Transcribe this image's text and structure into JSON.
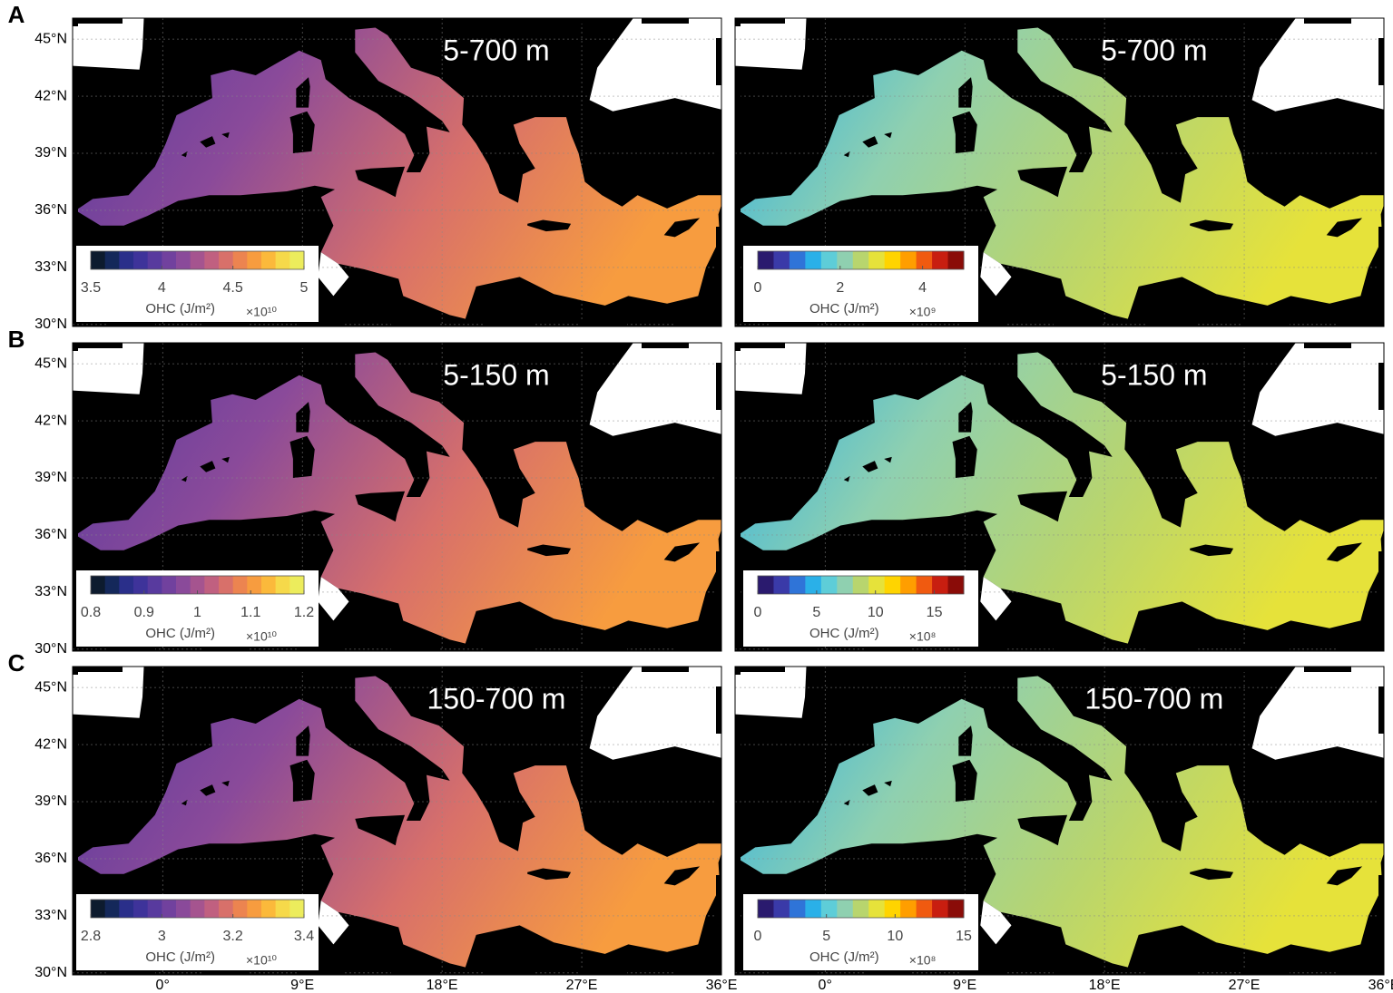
{
  "map": {
    "lon_lim": [
      -5.8,
      36
    ],
    "lat_lim": [
      29.9,
      46.1
    ],
    "lat_ticks": [
      {
        "value": 45,
        "label": "45°N"
      },
      {
        "value": 42,
        "label": "42°N"
      },
      {
        "value": 39,
        "label": "39°N"
      },
      {
        "value": 36,
        "label": "36°N"
      },
      {
        "value": 33,
        "label": "33°N"
      },
      {
        "value": 30,
        "label": "30°N"
      }
    ],
    "lon_ticks": [
      {
        "value": 0,
        "label": "0°"
      },
      {
        "value": 9,
        "label": "9°E"
      },
      {
        "value": 18,
        "label": "18°E"
      },
      {
        "value": 27,
        "label": "27°E"
      },
      {
        "value": 36,
        "label": "36°E"
      }
    ],
    "rows": [
      {
        "label": "A",
        "panels": [
          {
            "title": "5-700 m",
            "colorbar": {
              "label": "OHC (J/m²)",
              "scale": "×10¹⁰",
              "lim": [
                3.5,
                5
              ],
              "ticks": [
                3.5,
                4,
                4.5,
                5
              ],
              "colors": [
                "#0d1b2e",
                "#14285a",
                "#2a2f8a",
                "#3e339a",
                "#583a9e",
                "#71419e",
                "#8a4a9a",
                "#a5548f",
                "#c06080",
                "#d8706a",
                "#ec8450",
                "#f79c3f",
                "#fbb93b",
                "#f6d94a",
                "#ecec5c"
              ]
            }
          },
          {
            "title": "5-700 m",
            "colorbar": {
              "label": "OHC (J/m²)",
              "scale": "×10⁹",
              "lim": [
                0,
                5
              ],
              "ticks": [
                0,
                2,
                4
              ],
              "colors": [
                "#2a1a6e",
                "#3a3aa8",
                "#2f74d8",
                "#2ab0e8",
                "#5ecdd8",
                "#8fd0b0",
                "#b8d56e",
                "#e6e23a",
                "#ffd400",
                "#ff9e00",
                "#f05a10",
                "#c81e10",
                "#8a0c08"
              ]
            }
          }
        ]
      },
      {
        "label": "B",
        "panels": [
          {
            "title": "5-150 m",
            "colorbar": {
              "label": "OHC (J/m²)",
              "scale": "×10¹⁰",
              "lim": [
                0.8,
                1.2
              ],
              "ticks": [
                0.8,
                0.9,
                1,
                1.1,
                1.2
              ],
              "colors": [
                "#0d1b2e",
                "#14285a",
                "#2a2f8a",
                "#3e339a",
                "#583a9e",
                "#71419e",
                "#8a4a9a",
                "#a5548f",
                "#c06080",
                "#d8706a",
                "#ec8450",
                "#f79c3f",
                "#fbb93b",
                "#f6d94a",
                "#ecec5c"
              ]
            }
          },
          {
            "title": "5-150 m",
            "colorbar": {
              "label": "OHC (J/m²)",
              "scale": "×10⁸",
              "lim": [
                0,
                17.5
              ],
              "ticks": [
                0,
                5,
                10,
                15
              ],
              "colors": [
                "#2a1a6e",
                "#3a3aa8",
                "#2f74d8",
                "#2ab0e8",
                "#5ecdd8",
                "#8fd0b0",
                "#b8d56e",
                "#e6e23a",
                "#ffd400",
                "#ff9e00",
                "#f05a10",
                "#c81e10",
                "#8a0c08"
              ]
            }
          }
        ]
      },
      {
        "label": "C",
        "panels": [
          {
            "title": "150-700 m",
            "colorbar": {
              "label": "OHC (J/m²)",
              "scale": "×10¹⁰",
              "lim": [
                2.8,
                3.4
              ],
              "ticks": [
                2.8,
                3,
                3.2,
                3.4
              ],
              "colors": [
                "#0d1b2e",
                "#14285a",
                "#2a2f8a",
                "#3e339a",
                "#583a9e",
                "#71419e",
                "#8a4a9a",
                "#a5548f",
                "#c06080",
                "#d8706a",
                "#ec8450",
                "#f79c3f",
                "#fbb93b",
                "#f6d94a",
                "#ecec5c"
              ]
            }
          },
          {
            "title": "150-700 m",
            "colorbar": {
              "label": "OHC (J/m²)",
              "scale": "×10⁸",
              "lim": [
                0,
                15
              ],
              "ticks": [
                0,
                5,
                10,
                15
              ],
              "colors": [
                "#2a1a6e",
                "#3a3aa8",
                "#2f74d8",
                "#2ab0e8",
                "#5ecdd8",
                "#8fd0b0",
                "#b8d56e",
                "#e6e23a",
                "#ffd400",
                "#ff9e00",
                "#f05a10",
                "#c81e10",
                "#8a0c08"
              ]
            }
          }
        ]
      }
    ]
  }
}
